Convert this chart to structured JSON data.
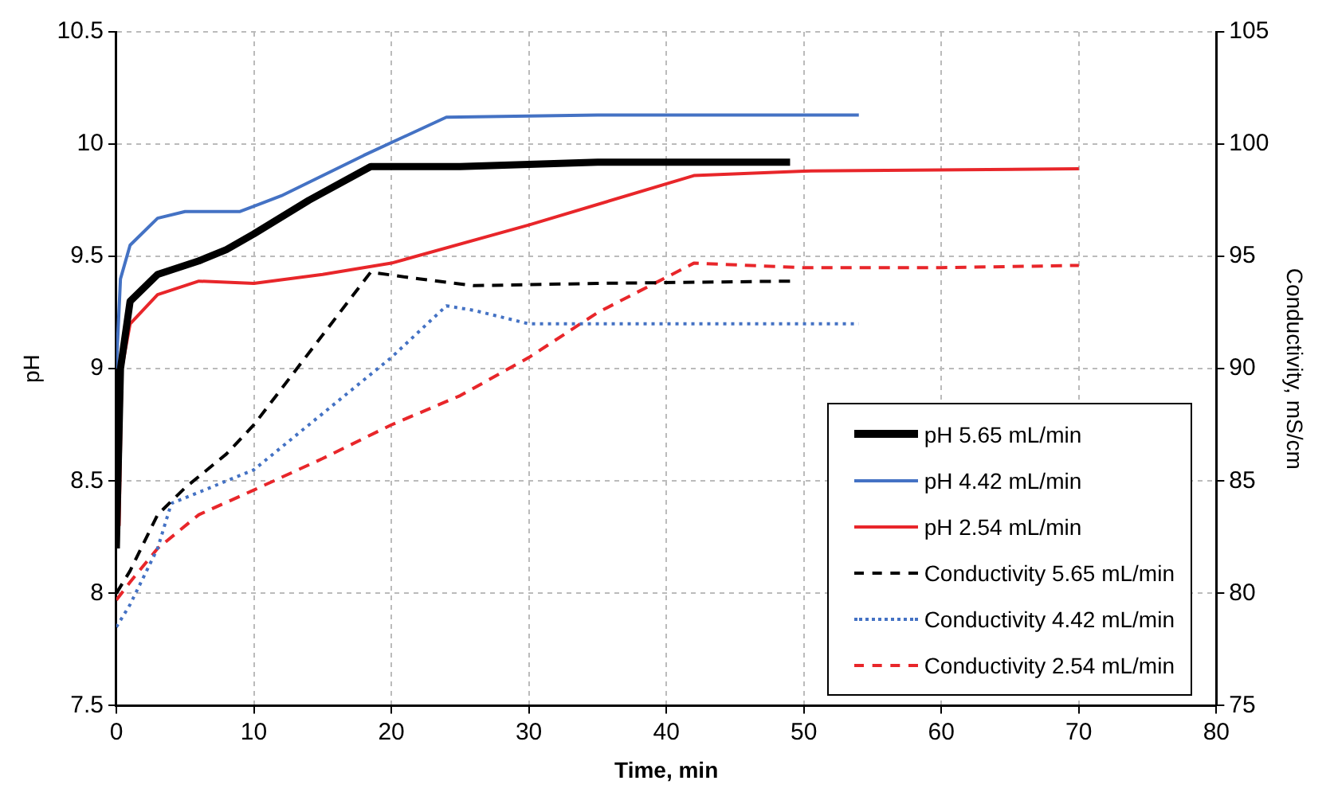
{
  "chart_data": {
    "type": "line",
    "xlabel": "Time, min",
    "ylabel": "pH",
    "y2label": "Conductivity, mS/cm",
    "xlim": [
      0,
      80
    ],
    "xticks": [
      0,
      10,
      20,
      30,
      40,
      50,
      60,
      70,
      80
    ],
    "ylim": [
      7.5,
      10.5
    ],
    "yticks": [
      7.5,
      8,
      8.5,
      9,
      9.5,
      10,
      10.5
    ],
    "y2lim": [
      75,
      105
    ],
    "y2ticks": [
      75,
      80,
      85,
      90,
      95,
      100,
      105
    ],
    "grid": true,
    "legend": "right",
    "marker": "none",
    "series": [
      {
        "name": "pH 5.65 mL/min",
        "color": "#000000",
        "line_style": "solid",
        "x": [
          0,
          0.3,
          1,
          3,
          6,
          8,
          10,
          14,
          18.5,
          25,
          35,
          49
        ],
        "values": [
          8.2,
          9.0,
          9.3,
          9.42,
          9.48,
          9.53,
          9.6,
          9.75,
          9.9,
          9.9,
          9.92,
          9.92
        ]
      },
      {
        "name": "pH 4.42 mL/min",
        "color": "#4472c4",
        "line_style": "solid",
        "x": [
          0,
          0.3,
          1,
          3,
          5,
          9,
          12,
          18,
          24,
          35,
          54
        ],
        "values": [
          9.0,
          9.4,
          9.55,
          9.67,
          9.7,
          9.7,
          9.77,
          9.95,
          10.12,
          10.13,
          10.13
        ]
      },
      {
        "name": "pH 2.54 mL/min",
        "color": "#e8262a",
        "line_style": "solid",
        "x": [
          0.2,
          0.4,
          1,
          3,
          6,
          10,
          15,
          20,
          30,
          42,
          50,
          70
        ],
        "values": [
          8.3,
          9.0,
          9.2,
          9.33,
          9.39,
          9.38,
          9.42,
          9.47,
          9.64,
          9.86,
          9.88,
          9.89
        ]
      },
      {
        "name": "Conductivity 5.65 mL/min",
        "color": "#000000",
        "line_style": "dashed",
        "axis": "y2",
        "x": [
          0,
          1,
          3,
          5,
          8,
          10,
          15,
          18.5,
          22,
          26,
          35,
          49
        ],
        "values": [
          80,
          81,
          83.5,
          84.7,
          86.2,
          87.5,
          91.5,
          94.3,
          94,
          93.7,
          93.8,
          93.9
        ]
      },
      {
        "name": "Conductivity 4.42 mL/min",
        "color": "#4472c4",
        "line_style": "dotted",
        "axis": "y2",
        "x": [
          0,
          1,
          3,
          4,
          8,
          10,
          15,
          20,
          24,
          26,
          30,
          40,
          54
        ],
        "values": [
          78.5,
          79.5,
          82,
          84,
          85,
          85.5,
          88,
          90.5,
          92.8,
          92.6,
          92,
          92,
          92
        ]
      },
      {
        "name": "Conductivity 2.54 mL/min",
        "color": "#e8262a",
        "line_style": "dashed",
        "axis": "y2",
        "x": [
          0,
          1,
          3,
          6,
          10,
          15,
          20,
          25,
          30,
          35,
          42,
          50,
          60,
          70
        ],
        "values": [
          79.7,
          80.5,
          82,
          83.5,
          84.6,
          86,
          87.5,
          88.8,
          90.5,
          92.5,
          94.7,
          94.5,
          94.5,
          94.6
        ]
      }
    ]
  }
}
